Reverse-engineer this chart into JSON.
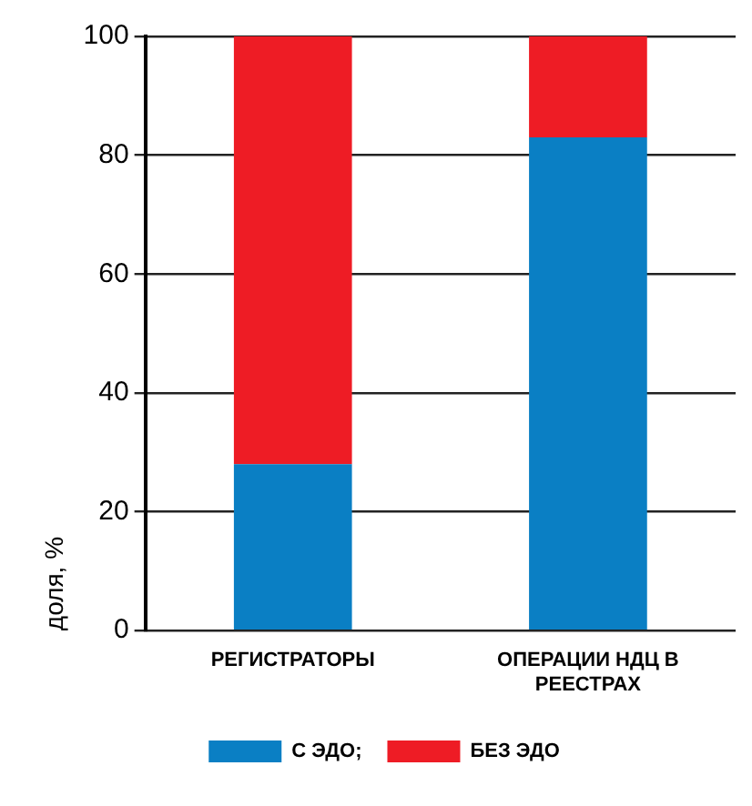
{
  "chart_data": {
    "type": "bar",
    "ylabel": "доля, %",
    "categories": [
      "РЕГИСТРАТОРЫ",
      "ОПЕРАЦИИ НДЦ В РЕЕСТРАХ"
    ],
    "stacked": true,
    "series": [
      {
        "name": "С ЭДО;",
        "color": "#0a7fc4",
        "values": [
          28,
          83
        ]
      },
      {
        "name": "БЕЗ ЭДО",
        "color": "#ee1c25",
        "values": [
          72,
          17
        ]
      }
    ],
    "ylim": [
      0,
      100
    ],
    "yticks": [
      0,
      20,
      40,
      60,
      80,
      100
    ],
    "grid": "y",
    "legend": "bottom"
  }
}
